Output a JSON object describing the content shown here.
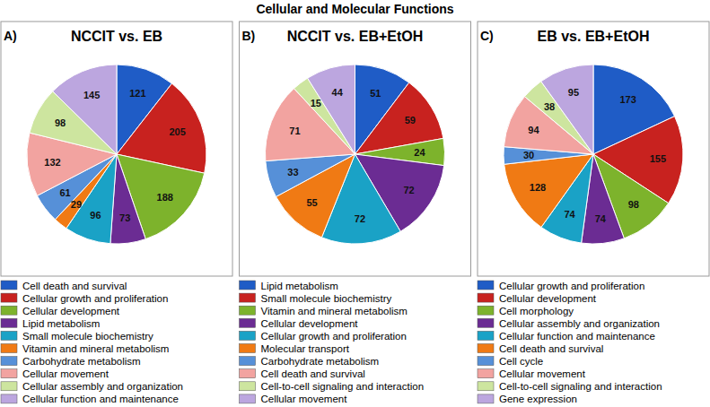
{
  "title": "Cellular and Molecular Functions",
  "chart_data": [
    {
      "type": "pie",
      "panel": "A)",
      "title": "NCCIT vs. EB",
      "categories": [
        "Cell death and survival",
        "Cellular growth and proliferation",
        "Cellular development",
        "Lipid metabolism",
        "Small molecule biochemistry",
        "Vitamin and mineral metabolism",
        "Carbohydrate metabolism",
        "Cellular movement",
        "Cellular assembly and organization",
        "Cellular function and maintenance"
      ],
      "values": [
        121,
        205,
        188,
        73,
        96,
        29,
        61,
        132,
        98,
        145
      ],
      "colors": [
        "#1f5cc6",
        "#c8221f",
        "#7db32c",
        "#6b2c93",
        "#1aa2c6",
        "#f07a14",
        "#5690d8",
        "#f2a3a0",
        "#cde59f",
        "#bca6df"
      ],
      "data_labels": true
    },
    {
      "type": "pie",
      "panel": "B)",
      "title": "NCCIT vs. EB+EtOH",
      "categories": [
        "Lipid metabolism",
        "Small molecule biochemistry",
        "Vitamin and mineral metabolism",
        "Cellular development",
        "Cellular growth and proliferation",
        "Molecular transport",
        "Carbohydrate metabolism",
        "Cell death and survival",
        "Cell-to-cell signaling and interaction",
        "Cellular movement"
      ],
      "values": [
        51,
        59,
        24,
        72,
        72,
        55,
        33,
        71,
        15,
        44
      ],
      "colors": [
        "#1f5cc6",
        "#c8221f",
        "#7db32c",
        "#6b2c93",
        "#1aa2c6",
        "#f07a14",
        "#5690d8",
        "#f2a3a0",
        "#cde59f",
        "#bca6df"
      ],
      "data_labels": true
    },
    {
      "type": "pie",
      "panel": "C)",
      "title": "EB vs. EB+EtOH",
      "categories": [
        "Cellular growth and proliferation",
        "Cellular development",
        "Cell morphology",
        "Cellular assembly and organization",
        "Cellular function and maintenance",
        "Cell death and survival",
        "Cell cycle",
        "Cellular movement",
        "Cell-to-cell signaling and interaction",
        "Gene expression"
      ],
      "values": [
        173,
        155,
        98,
        74,
        74,
        128,
        30,
        94,
        38,
        95
      ],
      "colors": [
        "#1f5cc6",
        "#c8221f",
        "#7db32c",
        "#6b2c93",
        "#1aa2c6",
        "#f07a14",
        "#5690d8",
        "#f2a3a0",
        "#cde59f",
        "#bca6df"
      ],
      "data_labels": true
    }
  ]
}
